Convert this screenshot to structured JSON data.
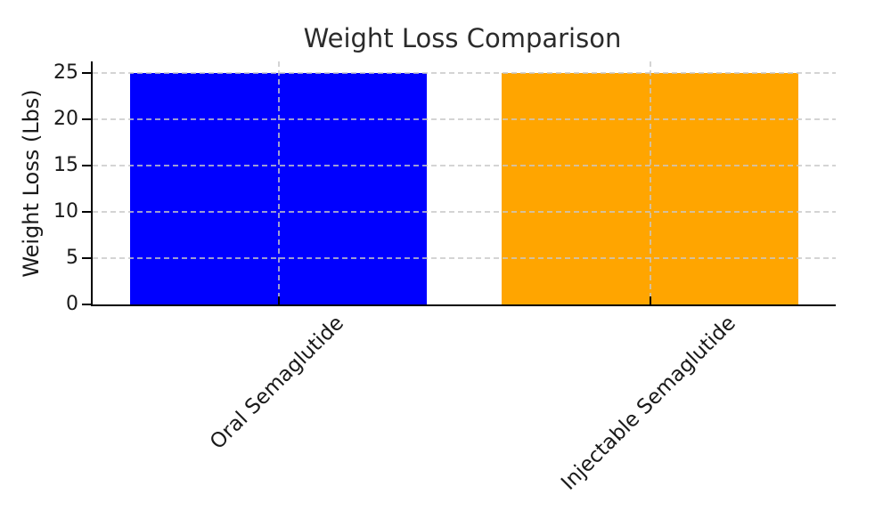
{
  "chart_data": {
    "type": "bar",
    "title": "Weight Loss Comparison",
    "ylabel": "Weight Loss (Lbs)",
    "categories": [
      "Oral Semaglutide",
      "Injectable Semaglutide"
    ],
    "values": [
      25,
      25
    ],
    "bar_colors": [
      "#0000ff",
      "#ffa500"
    ],
    "yticks": [
      0,
      5,
      10,
      15,
      20,
      25
    ],
    "ylim": [
      0,
      26.25
    ],
    "grid": "dashed",
    "grid_color": "#c8c8c8",
    "axis_color": "#000000",
    "text_color": "#1a1a1a",
    "title_color": "#2b2b2b",
    "xtick_rotation_deg": 45,
    "legend": "none"
  }
}
